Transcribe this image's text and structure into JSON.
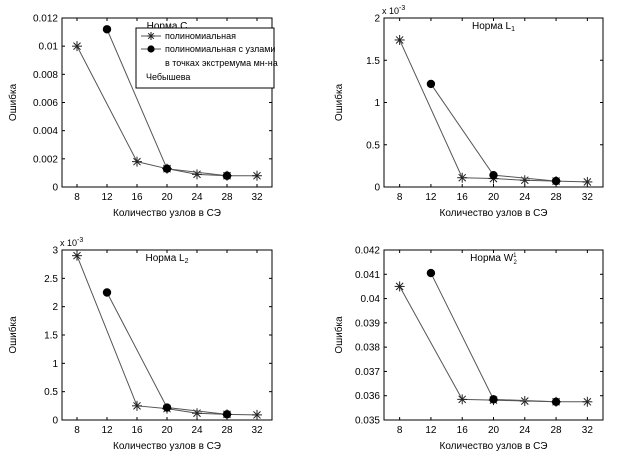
{
  "chart_data": [
    {
      "type": "line",
      "title": "Норма C",
      "xlabel": "Количество узлов в СЭ",
      "ylabel": "Ошибка",
      "xlim": [
        6,
        34
      ],
      "ylim": [
        0,
        0.012
      ],
      "xticks": [
        8,
        12,
        16,
        20,
        24,
        28,
        32
      ],
      "yticks": [
        0,
        0.002,
        0.004,
        0.006,
        0.008,
        0.01,
        0.012
      ],
      "ytick_labels": [
        "0",
        "0.002",
        "0.004",
        "0.006",
        "0.008",
        "0.01",
        "0.012"
      ],
      "exponent_label": "",
      "series": [
        {
          "name": "полиномиальная",
          "marker": "star",
          "x": [
            8,
            16,
            20,
            24,
            28,
            32
          ],
          "y": [
            0.01,
            0.0018,
            0.0013,
            0.0009,
            0.0008,
            0.0008
          ]
        },
        {
          "name": "полиномиальная с узлами в точках экстремума мн-на Чебышева",
          "marker": "dot",
          "x": [
            12,
            20,
            28
          ],
          "y": [
            0.0112,
            0.0013,
            0.0008
          ]
        }
      ],
      "legend": {
        "placement": "top-right",
        "entries": [
          [
            "полиномиальная"
          ],
          [
            "полиномиальная с узлами",
            "в точках экстремума мн-на",
            "Чебышева"
          ]
        ]
      }
    },
    {
      "type": "line",
      "title": "Норма L",
      "title_sub": "1",
      "xlabel": "Количество узлов в СЭ",
      "ylabel": "Ошибка",
      "xlim": [
        6,
        34
      ],
      "ylim": [
        0,
        2
      ],
      "xticks": [
        8,
        12,
        16,
        20,
        24,
        28,
        32
      ],
      "yticks": [
        0,
        0.5,
        1,
        1.5,
        2
      ],
      "ytick_labels": [
        "0",
        "0.5",
        "1",
        "1.5",
        "2"
      ],
      "exponent_label": "x 10",
      "exponent_power": "-3",
      "series": [
        {
          "name": "полиномиальная",
          "marker": "star",
          "x": [
            8,
            16,
            20,
            24,
            28,
            32
          ],
          "y": [
            1.74,
            0.11,
            0.1,
            0.08,
            0.07,
            0.06
          ]
        },
        {
          "name": "полиномиальная с узлами в точках экстремума мн-на Чебышева",
          "marker": "dot",
          "x": [
            12,
            20,
            28
          ],
          "y": [
            1.22,
            0.14,
            0.07
          ]
        }
      ]
    },
    {
      "type": "line",
      "title": "Норма L",
      "title_sub": "2",
      "xlabel": "Количество узлов в СЭ",
      "ylabel": "Ошибка",
      "xlim": [
        6,
        34
      ],
      "ylim": [
        0,
        3
      ],
      "xticks": [
        8,
        12,
        16,
        20,
        24,
        28,
        32
      ],
      "yticks": [
        0,
        0.5,
        1,
        1.5,
        2,
        2.5,
        3
      ],
      "ytick_labels": [
        "0",
        "0.5",
        "1",
        "1.5",
        "2",
        "2.5",
        "3"
      ],
      "exponent_label": "x 10",
      "exponent_power": "-3",
      "series": [
        {
          "name": "полиномиальная",
          "marker": "star",
          "x": [
            8,
            16,
            20,
            24,
            28,
            32
          ],
          "y": [
            2.9,
            0.25,
            0.2,
            0.12,
            0.1,
            0.09
          ]
        },
        {
          "name": "полиномиальная с узлами в точках экстремума мн-на Чебышева",
          "marker": "dot",
          "x": [
            12,
            20,
            28
          ],
          "y": [
            2.25,
            0.22,
            0.1
          ]
        }
      ]
    },
    {
      "type": "line",
      "title": "Норма W",
      "title_sub": "2",
      "title_sup": "1",
      "xlabel": "Количество узлов в СЭ",
      "ylabel": "Ошибка",
      "xlim": [
        6,
        34
      ],
      "ylim": [
        0.035,
        0.042
      ],
      "xticks": [
        8,
        12,
        16,
        20,
        24,
        28,
        32
      ],
      "yticks": [
        0.035,
        0.036,
        0.037,
        0.038,
        0.039,
        0.04,
        0.041,
        0.042
      ],
      "ytick_labels": [
        "0.035",
        "0.036",
        "0.037",
        "0.038",
        "0.039",
        "0.04",
        "0.041",
        "0.042"
      ],
      "exponent_label": "",
      "series": [
        {
          "name": "полиномиальная",
          "marker": "star",
          "x": [
            8,
            16,
            20,
            24,
            28,
            32
          ],
          "y": [
            0.0405,
            0.03585,
            0.03582,
            0.03578,
            0.03575,
            0.03575
          ]
        },
        {
          "name": "полиномиальная с узлами в точках экстремума мн-на Чебышева",
          "marker": "dot",
          "x": [
            12,
            20,
            28
          ],
          "y": [
            0.04105,
            0.03585,
            0.03575
          ]
        }
      ]
    }
  ]
}
